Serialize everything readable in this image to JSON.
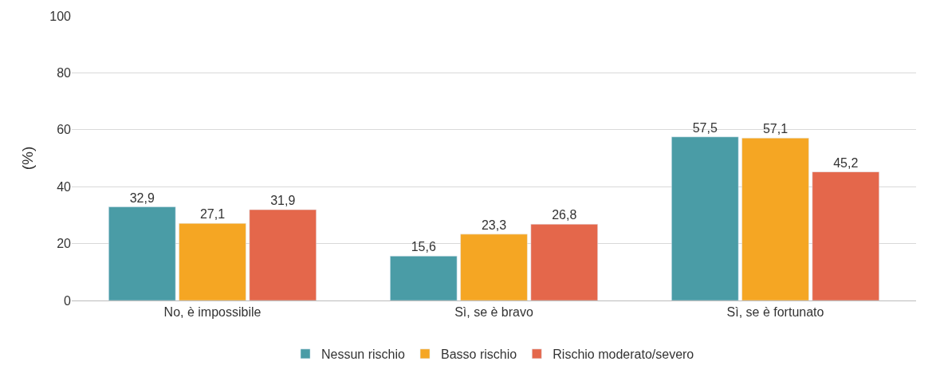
{
  "chart_data": {
    "type": "bar",
    "ylabel": "(%)",
    "categories": [
      "No, è impossibile",
      "Sì, se è bravo",
      "Sì, se è fortunato"
    ],
    "series": [
      {
        "name": "Nessun rischio",
        "color": "#4a9ca6",
        "values": [
          32.9,
          15.6,
          57.5
        ],
        "value_labels": [
          "32,9",
          "15,6",
          "57,5"
        ]
      },
      {
        "name": "Basso rischio",
        "color": "#f5a623",
        "values": [
          27.1,
          23.3,
          57.1
        ],
        "value_labels": [
          "27,1",
          "23,3",
          "57,1"
        ]
      },
      {
        "name": "Rischio moderato/severo",
        "color": "#e4674b",
        "values": [
          31.9,
          26.8,
          45.2
        ],
        "value_labels": [
          "31,9",
          "26,8",
          "45,2"
        ]
      }
    ],
    "ylim": [
      0,
      100
    ],
    "yticks": [
      0,
      20,
      40,
      60,
      80,
      100
    ],
    "grid": "y",
    "legend": "bottom"
  }
}
